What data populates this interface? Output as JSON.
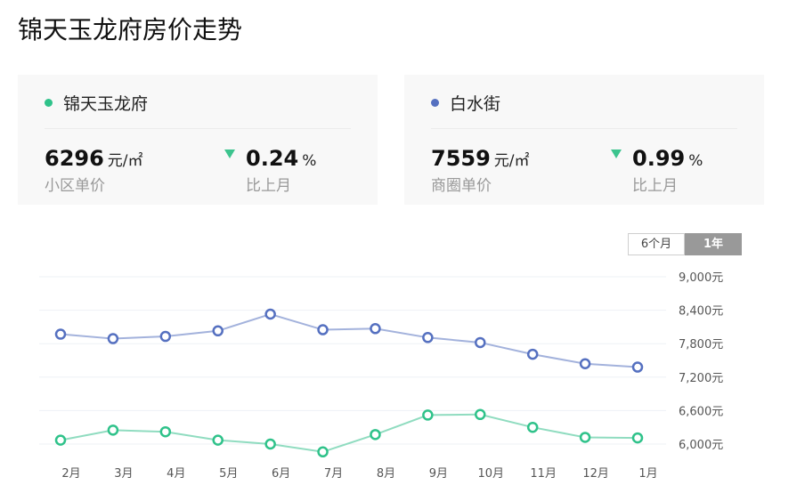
{
  "page_title": "锦天玉龙府房价走势",
  "cards": [
    {
      "name": "锦天玉龙府",
      "dot_color": "#2fc28a",
      "price": "6296",
      "unit": "元/㎡",
      "price_label": "小区单价",
      "change": "0.24",
      "change_unit": "%",
      "change_label": "比上月",
      "trend": "down"
    },
    {
      "name": "白水街",
      "dot_color": "#5570c0",
      "price": "7559",
      "unit": "元/㎡",
      "price_label": "商圈单价",
      "change": "0.99",
      "change_unit": "%",
      "change_label": "比上月",
      "trend": "down"
    }
  ],
  "range_toggle": {
    "option_6m": "6个月",
    "option_1y": "1年",
    "selected": "1年"
  },
  "chart_data": {
    "type": "line",
    "categories": [
      "2月",
      "3月",
      "4月",
      "5月",
      "6月",
      "7月",
      "8月",
      "9月",
      "10月",
      "11月",
      "12月",
      "1月"
    ],
    "y_ticks": [
      "9,000元",
      "8,400元",
      "7,800元",
      "7,200元",
      "6,600元",
      "6,000元"
    ],
    "ylim": [
      6000,
      9000
    ],
    "grid": true,
    "series": [
      {
        "color": "#5570c0",
        "line_color": "#a3b2dc",
        "values": [
          7970,
          7890,
          7930,
          8030,
          8330,
          8050,
          8070,
          7910,
          7820,
          7610,
          7440,
          7380
        ]
      },
      {
        "color": "#2fc28a",
        "line_color": "#90dcc0",
        "values": [
          6070,
          6250,
          6220,
          6070,
          6000,
          5860,
          6170,
          6520,
          6530,
          6300,
          6120,
          6110
        ]
      }
    ]
  }
}
